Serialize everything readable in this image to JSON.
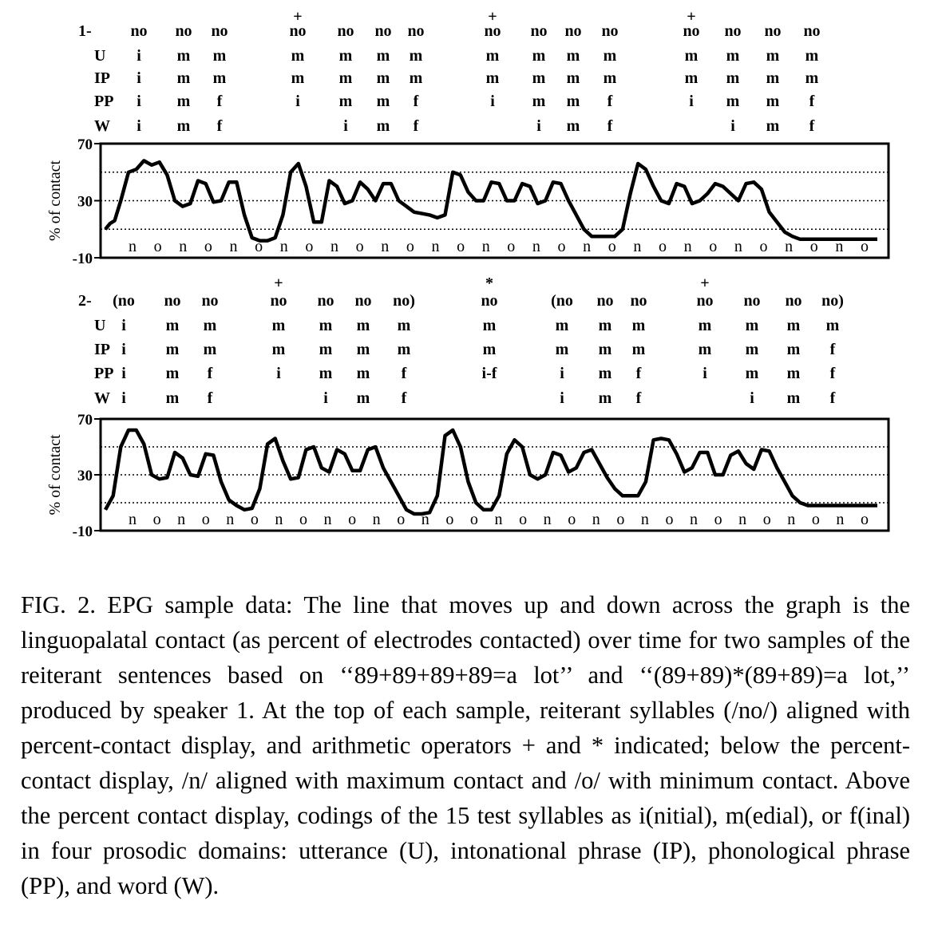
{
  "chart_data": [
    {
      "type": "line",
      "panel_label": "1-",
      "ylabel": "% of contact",
      "ylim": [
        -10,
        70
      ],
      "yticks": [
        "70",
        "30",
        "-10"
      ],
      "grid_lines": [
        10,
        30,
        50
      ],
      "grid": "dotted",
      "syllable_row": [
        "no",
        "no",
        "no",
        "no",
        "no",
        "no",
        "no",
        "no",
        "no",
        "no",
        "no",
        "no",
        "no",
        "no",
        "no"
      ],
      "operators": [
        "",
        "",
        "",
        "+",
        "",
        "",
        "",
        "+",
        "",
        "",
        "",
        "+",
        "",
        "",
        ""
      ],
      "domains": {
        "labels": [
          "U",
          "IP",
          "PP",
          "W"
        ],
        "U": [
          "i",
          "m",
          "m",
          "m",
          "m",
          "m",
          "m",
          "m",
          "m",
          "m",
          "m",
          "m",
          "m",
          "m",
          "m"
        ],
        "IP": [
          "i",
          "m",
          "m",
          "m",
          "m",
          "m",
          "m",
          "m",
          "m",
          "m",
          "m",
          "m",
          "m",
          "m",
          "m"
        ],
        "PP": [
          "i",
          "m",
          "f",
          "i",
          "m",
          "m",
          "f",
          "i",
          "m",
          "m",
          "f",
          "i",
          "m",
          "m",
          "f"
        ],
        "W": [
          "i",
          "m",
          "f",
          "",
          "i",
          "m",
          "f",
          "",
          "i",
          "m",
          "f",
          "",
          "i",
          "m",
          "f"
        ]
      },
      "bottom_labels": [
        "n",
        "o",
        "n",
        "o",
        "n",
        "o",
        "n",
        "o",
        "n",
        "o",
        "n",
        "o",
        "n",
        "o",
        "n",
        "o",
        "n",
        "o",
        "n",
        "o",
        "n",
        "o",
        "n",
        "o",
        "n",
        "o",
        "n",
        "o",
        "n",
        "o"
      ],
      "series": [
        {
          "x": [
            0,
            0.6,
            1.2,
            2.0,
            3.0,
            4.0,
            5.0,
            6.0,
            7.0,
            8.0,
            9.0,
            10.0,
            11.0,
            12.0,
            13.0,
            14.0,
            15.0,
            16.0,
            17.0,
            18.0,
            19.0,
            20.0,
            21.0,
            22.0,
            23.0,
            24.0,
            25.0,
            26.0,
            27.0,
            28.0,
            29.0,
            30.0,
            31.0,
            32.0,
            33.0,
            34.0,
            35.0,
            36.0,
            37.0,
            38.0,
            39.0,
            40.0,
            41.0,
            42.0,
            43.0,
            44.0,
            45.0,
            46.0,
            47.0,
            48.0,
            49.0,
            50.0,
            51.0,
            52.0,
            53.0,
            54.0,
            55.0,
            56.0,
            57.0,
            58.0,
            59.0,
            60.0,
            61.0,
            62.0,
            63.0,
            64.0,
            65.0,
            66.0,
            67.0,
            68.0,
            69.0,
            70.0,
            71.0,
            72.0,
            73.0,
            74.0,
            75.0,
            76.0,
            77.0,
            78.0,
            79.0,
            80.0,
            81.0,
            82.0,
            83.0,
            84.0,
            85.0,
            86.0,
            87.0,
            88.0,
            89.0,
            90.0,
            91.0,
            92.0,
            93.0,
            94.0,
            95.0,
            96.0,
            97.0,
            98.0,
            99.0,
            100.0
          ],
          "y": [
            10,
            14,
            16,
            30,
            50,
            52,
            58,
            55,
            57,
            48,
            30,
            26,
            28,
            44,
            42,
            29,
            30,
            43,
            43,
            20,
            4,
            2,
            2,
            4,
            20,
            50,
            56,
            40,
            15,
            15,
            44,
            40,
            28,
            30,
            43,
            38,
            30,
            42,
            42,
            30,
            26,
            22,
            21,
            20,
            18,
            20,
            50,
            48,
            36,
            30,
            30,
            43,
            42,
            30,
            30,
            42,
            40,
            28,
            30,
            43,
            42,
            30,
            20,
            10,
            5,
            5,
            5,
            5,
            10,
            35,
            56,
            52,
            40,
            30,
            28,
            42,
            40,
            28,
            30,
            35,
            42,
            40,
            35,
            30,
            42,
            43,
            38,
            22,
            15,
            8,
            5,
            3,
            3,
            3,
            3,
            3,
            3,
            3,
            3,
            3,
            3,
            3
          ]
        }
      ]
    },
    {
      "type": "line",
      "panel_label": "2-",
      "ylabel": "% of contact",
      "ylim": [
        -10,
        70
      ],
      "yticks": [
        "70",
        "30",
        "-10"
      ],
      "grid_lines": [
        10,
        30,
        50
      ],
      "grid": "dotted",
      "syllable_row": [
        "(no",
        "no",
        "no",
        "no",
        "no",
        "no",
        "no)",
        "no",
        "(no",
        "no",
        "no",
        "no",
        "no",
        "no",
        "no)"
      ],
      "operators": [
        "",
        "",
        "",
        "+",
        "",
        "",
        "",
        "*",
        "",
        "",
        "",
        "+",
        "",
        "",
        ""
      ],
      "domains": {
        "labels": [
          "U",
          "IP",
          "PP",
          "W"
        ],
        "U": [
          "i",
          "m",
          "m",
          "m",
          "m",
          "m",
          "m",
          "m",
          "m",
          "m",
          "m",
          "m",
          "m",
          "m",
          "m"
        ],
        "IP": [
          "i",
          "m",
          "m",
          "m",
          "m",
          "m",
          "m",
          "m",
          "m",
          "m",
          "m",
          "m",
          "m",
          "m",
          "f"
        ],
        "PP": [
          "i",
          "m",
          "f",
          "i",
          "m",
          "m",
          "f",
          "i-f",
          "i",
          "m",
          "f",
          "i",
          "m",
          "m",
          "f"
        ],
        "W": [
          "i",
          "m",
          "f",
          "",
          "i",
          "m",
          "f",
          "",
          "i",
          "m",
          "f",
          "",
          "i",
          "m",
          "f"
        ]
      },
      "bottom_labels": [
        "n",
        "o",
        "n",
        "o",
        "n",
        "o",
        "n",
        "o",
        "n",
        "o",
        "n",
        "o",
        "n",
        "o",
        "o",
        "n",
        "o",
        "n",
        "o",
        "n",
        "o",
        "n",
        "o",
        "n",
        "o",
        "n",
        "o",
        "n",
        "o",
        "n",
        "o"
      ],
      "series": [
        {
          "x": [
            0,
            1.0,
            2.0,
            3.0,
            4.0,
            5.0,
            6.0,
            7.0,
            8.0,
            9.0,
            10.0,
            11.0,
            12.0,
            13.0,
            14.0,
            15.0,
            16.0,
            17.0,
            18.0,
            19.0,
            20.0,
            21.0,
            22.0,
            23.0,
            24.0,
            25.0,
            26.0,
            27.0,
            28.0,
            29.0,
            30.0,
            31.0,
            32.0,
            33.0,
            34.0,
            35.0,
            36.0,
            37.0,
            38.0,
            39.0,
            40.0,
            41.0,
            42.0,
            43.0,
            44.0,
            45.0,
            46.0,
            47.0,
            48.0,
            49.0,
            50.0,
            51.0,
            52.0,
            53.0,
            54.0,
            55.0,
            56.0,
            57.0,
            58.0,
            59.0,
            60.0,
            61.0,
            62.0,
            63.0,
            64.0,
            65.0,
            66.0,
            67.0,
            68.0,
            69.0,
            70.0,
            71.0,
            72.0,
            73.0,
            74.0,
            75.0,
            76.0,
            77.0,
            78.0,
            79.0,
            80.0,
            81.0,
            82.0,
            83.0,
            84.0,
            85.0,
            86.0,
            87.0,
            88.0,
            89.0,
            90.0,
            91.0,
            92.0,
            93.0,
            94.0,
            95.0,
            96.0,
            97.0,
            98.0,
            99.0,
            100.0
          ],
          "y": [
            5,
            15,
            50,
            62,
            62,
            52,
            30,
            27,
            28,
            46,
            42,
            30,
            29,
            45,
            44,
            25,
            12,
            8,
            5,
            6,
            20,
            52,
            56,
            40,
            27,
            28,
            48,
            50,
            35,
            32,
            48,
            45,
            33,
            33,
            48,
            50,
            35,
            25,
            15,
            5,
            2,
            2,
            3,
            15,
            58,
            62,
            50,
            25,
            10,
            5,
            5,
            15,
            45,
            55,
            50,
            30,
            27,
            30,
            46,
            44,
            32,
            35,
            46,
            48,
            38,
            28,
            20,
            15,
            15,
            15,
            25,
            55,
            56,
            55,
            45,
            32,
            35,
            46,
            46,
            30,
            30,
            44,
            47,
            38,
            34,
            48,
            47,
            35,
            25,
            15,
            10,
            8,
            8,
            8,
            8,
            8,
            8,
            8,
            8,
            8,
            8
          ]
        }
      ]
    }
  ],
  "caption": "FIG. 2. EPG sample data: The line that moves up and down across the graph is the linguopalatal contact (as percent of electrodes contacted) over time for two samples of the reiterant sentences based on ‘‘89+89+89+89=a lot’’ and ‘‘(89+89)*(89+89)=a lot,’’ produced by speaker 1. At the top of each sample, reiterant syllables (/no/) aligned with percent-contact display, and arithmetic operators + and * indicated; below the percent-contact display, /n/ aligned with maximum contact and /o/ with minimum contact. Above the percent contact display, codings of the 15 test syllables as i(nitial), m(edial), or f(inal) in four prosodic domains: utterance (U), intonational phrase (IP), phonological phrase (PP), and word (W).",
  "colors": {
    "line": "#000000",
    "background": "#ffffff"
  }
}
